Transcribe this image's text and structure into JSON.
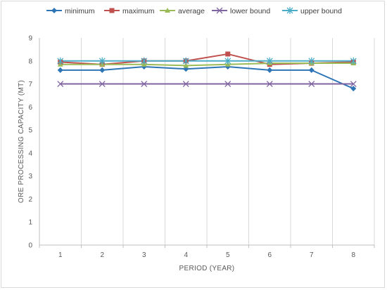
{
  "chart_data": {
    "type": "line",
    "title": "",
    "xlabel": "PERIOD (YEAR)",
    "ylabel": "ORE PROCESSING CAPACITY (MT)",
    "categories": [
      "1",
      "2",
      "3",
      "4",
      "5",
      "6",
      "7",
      "8"
    ],
    "ylim": [
      0,
      9
    ],
    "yticks": [
      0,
      1,
      2,
      3,
      4,
      5,
      6,
      7,
      8,
      9
    ],
    "grid": "vertical",
    "legend_position": "top",
    "series": [
      {
        "name": "minimum",
        "color": "#2e75b6",
        "marker": "diamond",
        "values": [
          7.6,
          7.6,
          7.75,
          7.65,
          7.75,
          7.6,
          7.6,
          6.8
        ]
      },
      {
        "name": "maximum",
        "color": "#c0504d",
        "marker": "square",
        "values": [
          7.95,
          7.85,
          8.0,
          8.0,
          8.3,
          7.85,
          7.9,
          7.95
        ]
      },
      {
        "name": "average",
        "color": "#9bbb59",
        "marker": "triangle",
        "values": [
          7.85,
          7.85,
          7.85,
          7.8,
          7.85,
          7.9,
          7.9,
          7.9
        ]
      },
      {
        "name": "lower bound",
        "color": "#8064a2",
        "marker": "x",
        "values": [
          7,
          7,
          7,
          7,
          7,
          7,
          7,
          7
        ]
      },
      {
        "name": "upper bound",
        "color": "#4bacc6",
        "marker": "star",
        "values": [
          8,
          8,
          8,
          8,
          8,
          8,
          8,
          8
        ]
      }
    ]
  }
}
